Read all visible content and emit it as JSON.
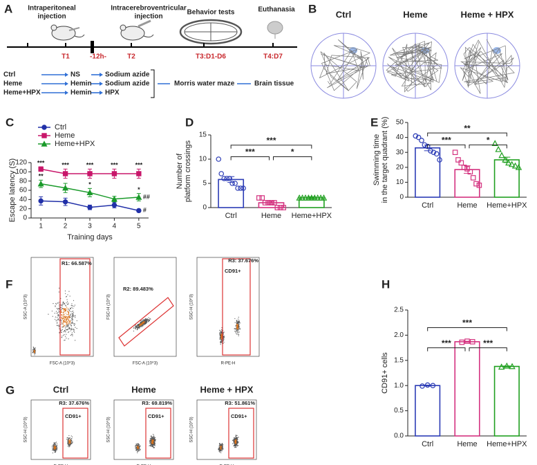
{
  "panel_labels": [
    "A",
    "B",
    "C",
    "D",
    "E",
    "F",
    "G",
    "H"
  ],
  "timeline": {
    "stages": [
      {
        "title": [
          "Intraperitoneal",
          "injection"
        ],
        "time": "T1"
      },
      {
        "title": [
          "Intracerebroventricular",
          "injection"
        ],
        "time": "T2"
      },
      {
        "title": [
          "Behavior tests"
        ],
        "time": "T3:D1-D6"
      },
      {
        "title": [
          "Euthanasia"
        ],
        "time": "T4:D7"
      }
    ],
    "interval": "-12h-",
    "groups": [
      [
        "Ctrl",
        "NS",
        "Sodium azide"
      ],
      [
        "Heme",
        "Hemin",
        "Sodium azide"
      ],
      [
        "Heme+HPX",
        "Hemin",
        "HPX"
      ]
    ],
    "outcomes": [
      "Morris water maze",
      "Brain tissue"
    ]
  },
  "trajectories": {
    "groups": [
      {
        "name": "Ctrl",
        "color": "#1f2a8f"
      },
      {
        "name": "Heme",
        "color": "#b5175c"
      },
      {
        "name": "Heme + HPX",
        "color": "#1f8f1f"
      }
    ]
  },
  "flow": {
    "gating": [
      {
        "gate": "R1: 66.587%",
        "x_label": "FSC-A (10^3)",
        "y_label": "SSC-A (10^3)"
      },
      {
        "gate": "R2: 89.483%",
        "x_label": "FSC-A (10^3)",
        "y_label": "FSC-H (10^3)"
      },
      {
        "gate": "R3: 37.676%",
        "tag": "CD91+",
        "x_label": "R-PE-H",
        "y_label": "SSC-H (10^3)"
      }
    ],
    "groups": [
      {
        "name": "Ctrl",
        "color": "#1f2a8f",
        "gate": "R3: 37.676%",
        "tag": "CD91+"
      },
      {
        "name": "Heme",
        "color": "#b5175c",
        "gate": "R3: 69.819%",
        "tag": "CD91+"
      },
      {
        "name": "Heme + HPX",
        "color": "#1f8f1f",
        "gate": "R3: 51.861%",
        "tag": "CD91+"
      }
    ],
    "x_label": "R-PE-H",
    "y_label": "SSC-H (10^3)"
  },
  "chart_data": [
    {
      "type": "line",
      "x_label": "Training days",
      "y_label": [
        "Escape latency (S)"
      ],
      "x": [
        1,
        2,
        3,
        4,
        5
      ],
      "xlim": [
        0.6,
        5.4
      ],
      "xticks": [
        1,
        2,
        3,
        4,
        5
      ],
      "ylim": [
        0,
        120
      ],
      "yticks": [
        0,
        20,
        40,
        60,
        80,
        100,
        120
      ],
      "legend": "upper left",
      "series": [
        {
          "name": "Ctrl",
          "color": "#2130a8",
          "marker": "circle",
          "values": [
            37,
            35,
            23,
            28,
            16
          ],
          "errors": [
            9,
            8,
            5,
            6,
            3
          ]
        },
        {
          "name": "Heme",
          "color": "#c8166a",
          "marker": "square",
          "values": [
            106,
            96,
            96,
            96,
            96
          ],
          "errors": [
            5,
            10,
            10,
            10,
            10
          ]
        },
        {
          "name": "Heme+HPX",
          "color": "#1a9a2a",
          "marker": "triangle",
          "values": [
            74,
            65,
            55,
            41,
            45
          ],
          "errors": [
            8,
            10,
            9,
            6,
            8
          ]
        }
      ],
      "annotations": [
        "***",
        "***",
        "***",
        "***",
        "***",
        "**",
        "*",
        "*",
        "##",
        "#"
      ]
    },
    {
      "type": "bar",
      "y_label": [
        "Number of",
        "platform crossings"
      ],
      "categories": [
        "Ctrl",
        "Heme",
        "Heme+HPX"
      ],
      "values": [
        5.8,
        1,
        2
      ],
      "errors": [
        0.6,
        0.3,
        0.2
      ],
      "colors": [
        "#2b3bb5",
        "#d4317f",
        "#1f9f1f"
      ],
      "markers": [
        "circle",
        "square",
        "triangle"
      ],
      "points": [
        [
          10,
          7,
          6,
          6,
          6,
          5,
          5,
          4,
          4,
          4
        ],
        [
          2,
          2,
          1,
          1,
          1,
          1,
          0,
          0,
          0
        ],
        [
          2,
          2,
          2,
          2,
          2,
          2,
          2,
          2,
          2
        ]
      ],
      "ylim": [
        0,
        15
      ],
      "yticks": [
        0,
        5,
        10,
        15
      ],
      "annotations": [
        "***",
        "***",
        "*"
      ]
    },
    {
      "type": "bar",
      "y_label": [
        "Swimming time",
        "in the target quadrant (%)"
      ],
      "categories": [
        "Ctrl",
        "Heme",
        "Heme+HPX"
      ],
      "values": [
        33,
        18.5,
        25
      ],
      "errors": [
        1.9,
        2.5,
        1.8
      ],
      "colors": [
        "#2b3bb5",
        "#d4317f",
        "#1f9f1f"
      ],
      "markers": [
        "circle",
        "square",
        "triangle"
      ],
      "points": [
        [
          41,
          40,
          38,
          35,
          34,
          31,
          30,
          29,
          25
        ],
        [
          30,
          25,
          23,
          20,
          19,
          17,
          13,
          9,
          8
        ],
        [
          36,
          32,
          28,
          25,
          23,
          22,
          21,
          20
        ]
      ],
      "ylim": [
        0,
        50
      ],
      "yticks": [
        0,
        10,
        20,
        30,
        40,
        50
      ],
      "annotations": [
        "**",
        "***",
        "*"
      ]
    },
    {
      "type": "bar",
      "y_label": [
        "CD91+ cells"
      ],
      "categories": [
        "Ctrl",
        "Heme",
        "Heme+HPX"
      ],
      "values": [
        1.0,
        1.87,
        1.38
      ],
      "errors": [
        0.01,
        0.01,
        0.01
      ],
      "colors": [
        "#2b3bb5",
        "#d4317f",
        "#1f9f1f"
      ],
      "markers": [
        "circle",
        "square",
        "triangle"
      ],
      "points": [
        [
          0.99,
          1.01,
          1.0
        ],
        [
          1.86,
          1.88,
          1.87
        ],
        [
          1.37,
          1.39,
          1.38
        ]
      ],
      "ylim": [
        0,
        2.5
      ],
      "yticks": [
        {
          "value": 0,
          "label": "0.0"
        },
        {
          "value": 0.5,
          "label": "0.5"
        },
        {
          "value": 1,
          "label": "1.0"
        },
        {
          "value": 1.5,
          "label": "1.5"
        },
        {
          "value": 2,
          "label": "2.0"
        },
        {
          "value": 2.5,
          "label": "2.5"
        }
      ],
      "annotations": [
        "***",
        "***",
        "***"
      ]
    }
  ]
}
